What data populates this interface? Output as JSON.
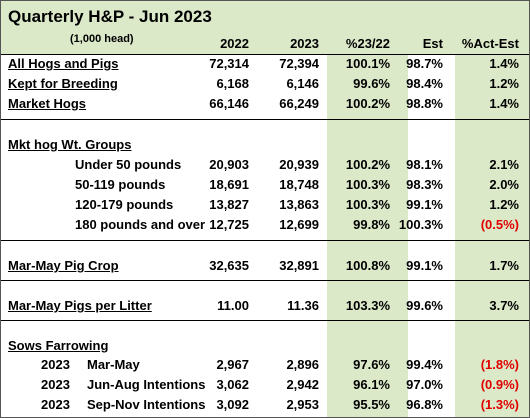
{
  "title": "Quarterly H&P - Jun 2023",
  "subtitle": "(1,000 head)",
  "columns": [
    "2022",
    "2023",
    "%23/22",
    "Est",
    "%Act-Est"
  ],
  "rows": [
    {
      "label": "All Hogs and Pigs",
      "level": "section",
      "underline": true,
      "values": [
        "72,314",
        "72,394",
        "100.1%",
        "98.7%",
        "1.4%"
      ]
    },
    {
      "label": "Kept for Breeding",
      "level": "section",
      "underline": true,
      "values": [
        "6,168",
        "6,146",
        "99.6%",
        "98.4%",
        "1.2%"
      ]
    },
    {
      "label": "Market Hogs",
      "level": "section",
      "underline": true,
      "values": [
        "66,146",
        "66,249",
        "100.2%",
        "98.8%",
        "1.4%"
      ]
    },
    {
      "label": "Mkt hog Wt. Groups",
      "level": "section",
      "underline": true,
      "values": [
        "",
        "",
        "",
        "",
        ""
      ]
    },
    {
      "label": "Under 50 pounds",
      "level": "indent",
      "underline": false,
      "values": [
        "20,903",
        "20,939",
        "100.2%",
        "98.1%",
        "2.1%"
      ]
    },
    {
      "label": "50-119 pounds",
      "level": "indent",
      "underline": false,
      "values": [
        "18,691",
        "18,748",
        "100.3%",
        "98.3%",
        "2.0%"
      ]
    },
    {
      "label": "120-179 pounds",
      "level": "indent",
      "underline": false,
      "values": [
        "13,827",
        "13,863",
        "100.3%",
        "99.1%",
        "1.2%"
      ]
    },
    {
      "label": "180 pounds and over",
      "level": "indent",
      "underline": false,
      "values": [
        "12,725",
        "12,699",
        "99.8%",
        "100.3%",
        "(0.5%)"
      ],
      "negative": true
    },
    {
      "label": "Mar-May Pig Crop",
      "level": "section",
      "underline": true,
      "values": [
        "32,635",
        "32,891",
        "100.8%",
        "99.1%",
        "1.7%"
      ]
    },
    {
      "label": "Mar-May Pigs per Litter",
      "level": "section",
      "underline": true,
      "values": [
        "11.00",
        "11.36",
        "103.3%",
        "99.6%",
        "3.7%"
      ]
    },
    {
      "label": "Sows Farrowing",
      "level": "section",
      "underline": true,
      "values": [
        "",
        "",
        "",
        "",
        ""
      ]
    },
    {
      "label": "Mar-May",
      "year": "2023",
      "level": "sub",
      "underline": false,
      "values": [
        "2,967",
        "2,896",
        "97.6%",
        "99.4%",
        "(1.8%)"
      ],
      "negative": true
    },
    {
      "label": "Jun-Aug Intentions",
      "year": "2023",
      "level": "sub",
      "underline": false,
      "values": [
        "3,062",
        "2,942",
        "96.1%",
        "97.0%",
        "(0.9%)"
      ],
      "negative": true
    },
    {
      "label": "Sep-Nov Intentions",
      "year": "2023",
      "level": "sub",
      "underline": false,
      "values": [
        "3,092",
        "2,953",
        "95.5%",
        "96.8%",
        "(1.3%)"
      ],
      "negative": true
    }
  ],
  "colors": {
    "highlight": "#dbe9c9",
    "negative": "#e00000"
  }
}
